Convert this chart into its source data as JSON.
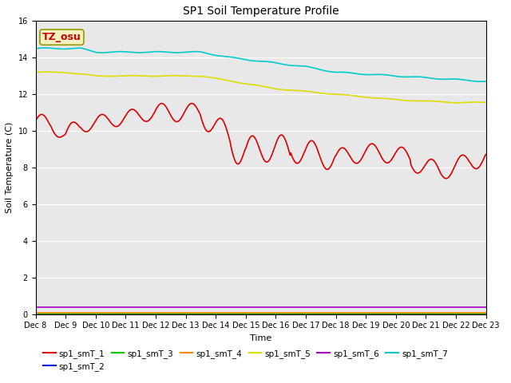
{
  "title": "SP1 Soil Temperature Profile",
  "xlabel": "Time",
  "ylabel": "Soil Temperature (C)",
  "ylim": [
    0,
    16
  ],
  "yticks": [
    0,
    2,
    4,
    6,
    8,
    10,
    12,
    14,
    16
  ],
  "xtick_labels": [
    "Dec 8",
    "Dec 9",
    "Dec 10",
    "Dec 11",
    "Dec 12",
    "Dec 13",
    "Dec 14",
    "Dec 15",
    "Dec 16",
    "Dec 17",
    "Dec 18",
    "Dec 19",
    "Dec 20",
    "Dec 21",
    "Dec 22",
    "Dec 23"
  ],
  "n_days": 15,
  "background_color": "#e8e8e8",
  "fig_facecolor": "#ffffff",
  "annotation_text": "TZ_osu",
  "annotation_color": "#cc0000",
  "annotation_facecolor": "#f5f0c0",
  "annotation_edgecolor": "#999900",
  "series_order": [
    "sp1_smT_1",
    "sp1_smT_2",
    "sp1_smT_3",
    "sp1_smT_4",
    "sp1_smT_5",
    "sp1_smT_6",
    "sp1_smT_7"
  ],
  "series_colors": {
    "sp1_smT_1": "#dd0000",
    "sp1_smT_2": "#0000dd",
    "sp1_smT_3": "#00cc00",
    "sp1_smT_4": "#ff8800",
    "sp1_smT_5": "#dddd00",
    "sp1_smT_6": "#aa00cc",
    "sp1_smT_7": "#00cccc"
  },
  "linewidth": 1.2,
  "grid_color": "#ffffff",
  "title_fontsize": 10,
  "label_fontsize": 8,
  "tick_fontsize": 7,
  "legend_fontsize": 7.5
}
